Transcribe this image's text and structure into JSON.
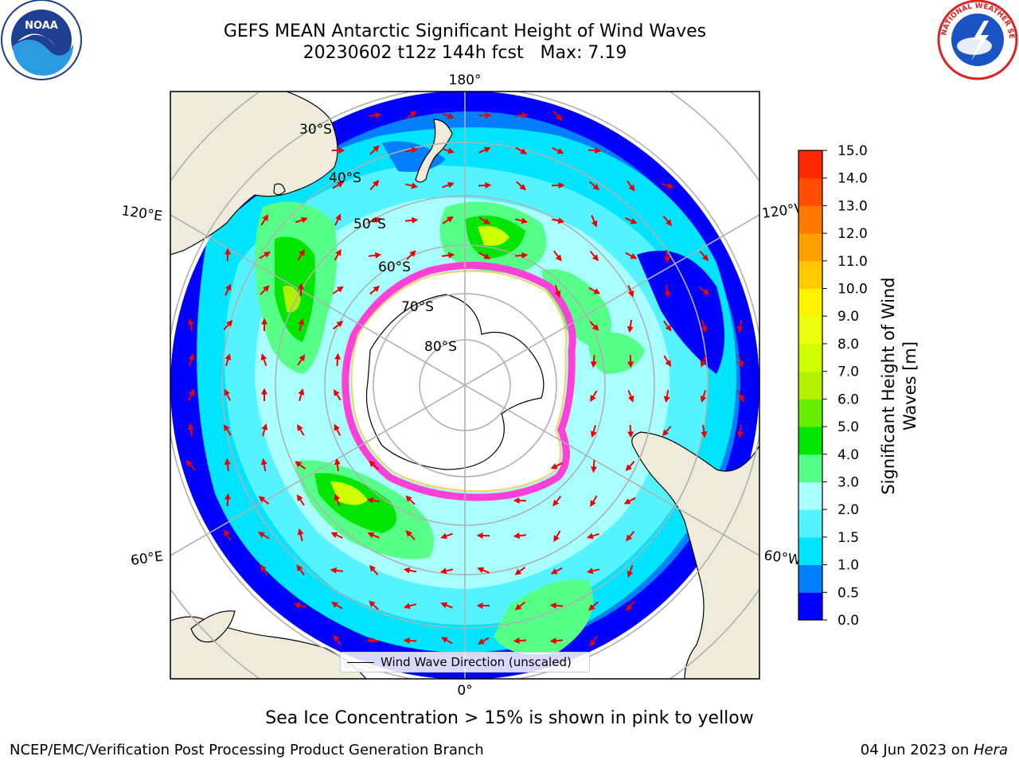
{
  "title": "GEFS MEAN Antarctic Significant Height of Wind Waves",
  "subtitle": "20230602 t12z 144h fcst   Max: 7.19",
  "note": "Sea Ice Concentration > 15% is shown in pink to yellow",
  "credit_left": "NCEP/EMC/Verification Post Processing Product Generation Branch",
  "credit_right_date": "04 Jun 2023 on ",
  "credit_right_machine": "Hera",
  "legend_label": "Wind Wave Direction (unscaled)",
  "logos": {
    "left": "NOAA",
    "right": "NATIONAL WEATHER SERVICE"
  },
  "map": {
    "projection": "south-polar-stereographic",
    "longitude_labels": {
      "top": "180°",
      "bottom": "0°",
      "upper_left": "120°E",
      "upper_right": "120°W",
      "lower_left": "60°E",
      "lower_right": "60°W"
    },
    "latitude_labels": [
      "30°S",
      "40°S",
      "50°S",
      "60°S",
      "70°S",
      "80°S"
    ],
    "colors": {
      "land": "#efebda",
      "ice_shelf": "#ffffff",
      "sea_ice_edge": "#ff40d8",
      "arrow": "#ee0000",
      "grid": "#b0b0b0"
    }
  },
  "colorbar": {
    "label": "Significant Height of Wind\nWaves [m]",
    "ticks": [
      "15.0",
      "14.0",
      "13.0",
      "12.0",
      "11.0",
      "10.0",
      "9.0",
      "8.0",
      "7.0",
      "6.0",
      "5.0",
      "4.0",
      "3.0",
      "2.0",
      "1.5",
      "1.0",
      "0.5",
      "0.0"
    ],
    "colors": [
      "#0000ff",
      "#0080ff",
      "#00e5ff",
      "#54f3ff",
      "#a8ffff",
      "#56ff88",
      "#00e600",
      "#66ee00",
      "#b0f000",
      "#cfff00",
      "#ebff10",
      "#fff200",
      "#ffc800",
      "#ffa000",
      "#ff7800",
      "#ff4e00",
      "#ff2800",
      "#ff0000"
    ]
  }
}
